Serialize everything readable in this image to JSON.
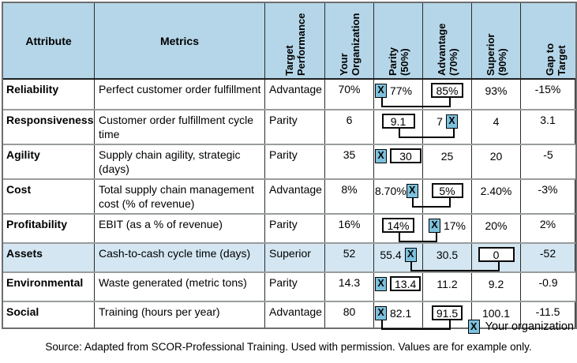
{
  "config": {
    "marker_char": "X"
  },
  "colors": {
    "header_bg": "#b5d6e8",
    "highlight_row_bg": "#d3e6f2",
    "marker_bg": "#7dc1dd",
    "grid_line": "#989c9e"
  },
  "table": {
    "columns": [
      {
        "label": "Attribute",
        "rotated": false
      },
      {
        "label": "Metrics",
        "rotated": false
      },
      {
        "label": "Target\nPerformance",
        "rotated": true
      },
      {
        "label": "Your\nOrganization",
        "rotated": true
      },
      {
        "label": "Parity\n(50%)",
        "rotated": true
      },
      {
        "label": "Advantage\n(70%)",
        "rotated": true
      },
      {
        "label": "Superior\n(90%)",
        "rotated": true
      },
      {
        "label": "Gap to\nTarget",
        "rotated": true
      }
    ],
    "rows": [
      {
        "attribute": "Reliability",
        "metrics": "Perfect customer order fulfillment",
        "target": "Advantage",
        "your_org": "70%",
        "parity": {
          "align": "left",
          "items": [
            {
              "t": "marker",
              "link": true
            },
            {
              "t": "text",
              "v": "77%"
            }
          ]
        },
        "advantage": {
          "items": [
            {
              "t": "box",
              "v": "85%",
              "link": true
            }
          ]
        },
        "superior": {
          "items": [
            {
              "t": "text",
              "v": "93%"
            }
          ]
        },
        "gap": "-15%",
        "highlight": false
      },
      {
        "attribute": "Responsiveness",
        "metrics": "Customer order fulfillment cycle time",
        "target": "Parity",
        "your_org": "6",
        "parity": {
          "items": [
            {
              "t": "box",
              "v": "9.1",
              "link": true,
              "mw": 42
            }
          ]
        },
        "advantage": {
          "items": [
            {
              "t": "text",
              "v": "7"
            },
            {
              "t": "marker",
              "link": true
            }
          ]
        },
        "superior": {
          "items": [
            {
              "t": "text",
              "v": "4"
            }
          ]
        },
        "gap": "3.1",
        "highlight": false
      },
      {
        "attribute": "Agility",
        "metrics": "Supply chain agility, strategic (days)",
        "target": "Parity",
        "your_org": "35",
        "parity": {
          "align": "left",
          "items": [
            {
              "t": "marker"
            },
            {
              "t": "box",
              "v": "30",
              "mw": 40
            }
          ]
        },
        "advantage": {
          "items": [
            {
              "t": "text",
              "v": "25"
            }
          ]
        },
        "superior": {
          "items": [
            {
              "t": "text",
              "v": "20"
            }
          ]
        },
        "gap": "-5",
        "highlight": false
      },
      {
        "attribute": "Cost",
        "metrics": "Total supply chain management cost (% of revenue)",
        "target": "Advantage",
        "your_org": "8%",
        "parity": {
          "align": "left",
          "items": [
            {
              "t": "text",
              "v": "8.70%"
            },
            {
              "t": "marker",
              "link": true,
              "tight": true
            }
          ]
        },
        "advantage": {
          "items": [
            {
              "t": "box",
              "v": "5%",
              "link": true,
              "mw": 40
            }
          ]
        },
        "superior": {
          "items": [
            {
              "t": "text",
              "v": "2.40%"
            }
          ]
        },
        "gap": "-3%",
        "highlight": false
      },
      {
        "attribute": "Profitability",
        "metrics": "EBIT (as a % of revenue)",
        "target": "Parity",
        "your_org": "16%",
        "parity": {
          "items": [
            {
              "t": "box",
              "v": "14%",
              "link": true
            }
          ]
        },
        "advantage": {
          "items": [
            {
              "t": "marker",
              "link": true
            },
            {
              "t": "text",
              "v": "17%"
            }
          ]
        },
        "superior": {
          "items": [
            {
              "t": "text",
              "v": "20%"
            }
          ]
        },
        "gap": "2%",
        "highlight": false
      },
      {
        "attribute": "Assets",
        "metrics": "Cash-to-cash cycle time (days)",
        "target": "Superior",
        "your_org": "52",
        "parity": {
          "items": [
            {
              "t": "text",
              "v": "55.4"
            },
            {
              "t": "marker",
              "link": true
            }
          ]
        },
        "advantage": {
          "items": [
            {
              "t": "text",
              "v": "30.5"
            }
          ]
        },
        "superior": {
          "items": [
            {
              "t": "box",
              "v": "0",
              "link": true,
              "mw": 46
            }
          ]
        },
        "gap": "-52",
        "highlight": true
      },
      {
        "attribute": "Environmental",
        "metrics": "Waste generated (metric tons)",
        "target": "Parity",
        "your_org": "14.3",
        "parity": {
          "align": "left",
          "items": [
            {
              "t": "marker"
            },
            {
              "t": "box",
              "v": "13.4"
            }
          ]
        },
        "advantage": {
          "items": [
            {
              "t": "text",
              "v": "11.2"
            }
          ]
        },
        "superior": {
          "items": [
            {
              "t": "text",
              "v": "9.2"
            }
          ]
        },
        "gap": "-0.9",
        "highlight": false
      },
      {
        "attribute": "Social",
        "metrics": "Training (hours per year)",
        "target": "Advantage",
        "your_org": "80",
        "parity": {
          "align": "left",
          "items": [
            {
              "t": "marker",
              "link": true
            },
            {
              "t": "text",
              "v": "82.1"
            }
          ]
        },
        "advantage": {
          "items": [
            {
              "t": "box",
              "v": "91.5",
              "link": true
            }
          ]
        },
        "superior": {
          "items": [
            {
              "t": "text",
              "v": "100.1"
            }
          ]
        },
        "gap": "-11.5",
        "highlight": false
      }
    ]
  },
  "legend": {
    "marker": "X",
    "label": "Your organization"
  },
  "source": "Source: Adapted from SCOR-Professional Training. Used with permission. Values are for example only."
}
